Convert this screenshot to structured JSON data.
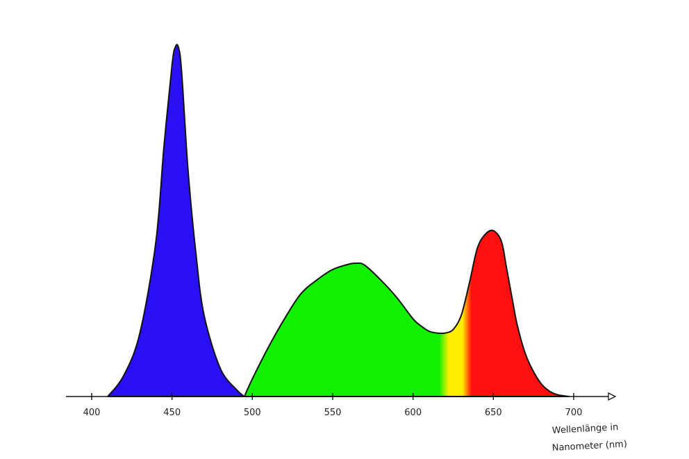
{
  "chart_data": {
    "type": "area",
    "xlabel": "Wellenlänge in",
    "xlabel_line2": "Nanometer (nm)",
    "xlim": [
      385,
      725
    ],
    "ylim": [
      0,
      1
    ],
    "grid": false,
    "x_ticks": [
      "400",
      "450",
      "500",
      "550",
      "600",
      "650",
      "700"
    ],
    "y_ticks": [],
    "series": [
      {
        "fill": "blue",
        "x": [
          410,
          420,
          430,
          440,
          445,
          450,
          452,
          454,
          456,
          460,
          465,
          470,
          480,
          490,
          495
        ],
        "y": [
          0.0,
          0.06,
          0.18,
          0.44,
          0.71,
          0.94,
          0.99,
          0.99,
          0.92,
          0.64,
          0.4,
          0.23,
          0.08,
          0.02,
          0.0
        ]
      },
      {
        "fill": "green-yellow-red",
        "x": [
          495,
          500,
          510,
          520,
          530,
          540,
          550,
          560,
          565,
          570,
          580,
          590,
          600,
          605,
          610,
          615,
          620,
          625,
          630,
          635,
          640,
          645,
          650,
          655,
          658,
          662,
          665,
          670,
          675,
          680,
          685,
          690,
          697
        ],
        "y": [
          0.0,
          0.05,
          0.14,
          0.22,
          0.29,
          0.33,
          0.36,
          0.375,
          0.378,
          0.372,
          0.33,
          0.28,
          0.22,
          0.2,
          0.185,
          0.18,
          0.18,
          0.19,
          0.23,
          0.32,
          0.42,
          0.46,
          0.47,
          0.44,
          0.37,
          0.27,
          0.2,
          0.12,
          0.07,
          0.035,
          0.015,
          0.005,
          0.0
        ]
      }
    ]
  }
}
